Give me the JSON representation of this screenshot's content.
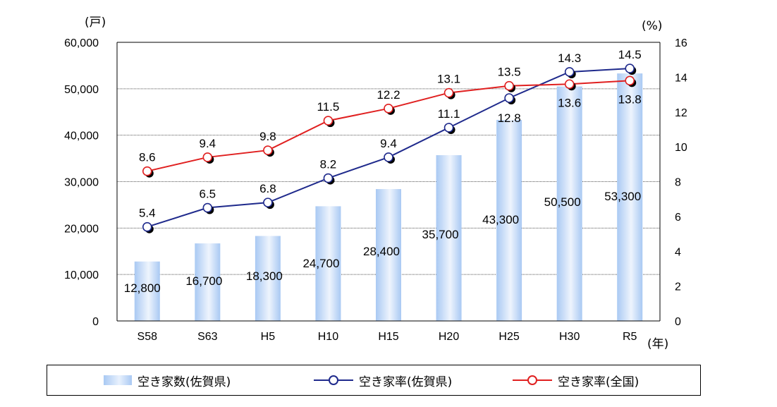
{
  "chart_data": {
    "type": "bar+line",
    "categories": [
      "S58",
      "S63",
      "H5",
      "H10",
      "H15",
      "H20",
      "H25",
      "H30",
      "R5"
    ],
    "bars": {
      "name": "空き家数(佐賀県)",
      "values": [
        12800,
        16700,
        18300,
        24700,
        28400,
        35700,
        43300,
        50500,
        53300
      ],
      "labels": [
        "12,800",
        "16,700",
        "18,300",
        "24,700",
        "28,400",
        "35,700",
        "43,300",
        "50,500",
        "53,300"
      ],
      "color": "#a9c9f3"
    },
    "series": [
      {
        "name": "空き家率(佐賀県)",
        "values": [
          5.4,
          6.5,
          6.8,
          8.2,
          9.4,
          11.1,
          12.8,
          14.3,
          14.5
        ],
        "color": "#1f2a8c",
        "axis": "right"
      },
      {
        "name": "空き家率(全国)",
        "values": [
          8.6,
          9.4,
          9.8,
          11.5,
          12.2,
          13.1,
          13.5,
          13.6,
          13.8
        ],
        "color": "#e02020",
        "axis": "right"
      }
    ],
    "y_left": {
      "unit": "(戸)",
      "min": 0,
      "max": 60000,
      "ticks": [
        "0",
        "10,000",
        "20,000",
        "30,000",
        "40,000",
        "50,000",
        "60,000"
      ]
    },
    "y_right": {
      "unit": "(%)",
      "min": 0,
      "max": 16,
      "ticks": [
        "0",
        "2",
        "4",
        "6",
        "8",
        "10",
        "12",
        "14",
        "16"
      ]
    },
    "x_unit": "(年)",
    "grid": true,
    "legend_position": "bottom"
  }
}
